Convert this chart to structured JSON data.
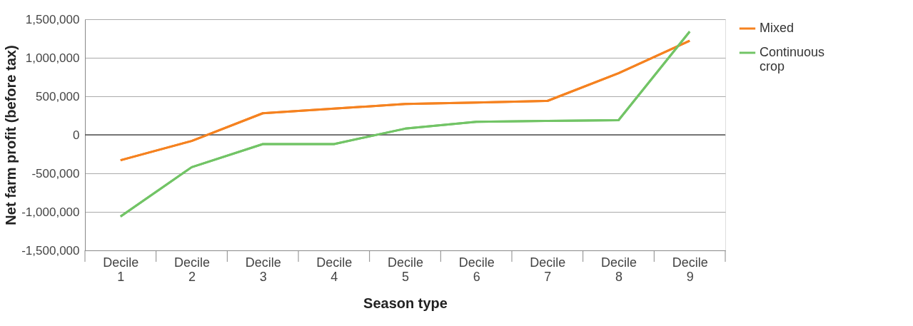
{
  "chart_data": {
    "type": "line",
    "xlabel": "Season type",
    "ylabel": "Net farm profit (before tax)",
    "categories": [
      "Decile 1",
      "Decile 2",
      "Decile 3",
      "Decile 4",
      "Decile 5",
      "Decile 6",
      "Decile 7",
      "Decile 8",
      "Decile 9"
    ],
    "series": [
      {
        "name": "Mixed",
        "color": "#f58220",
        "values": [
          -330000,
          -80000,
          280000,
          340000,
          400000,
          420000,
          440000,
          800000,
          1220000
        ]
      },
      {
        "name": "Continuous crop",
        "color": "#72c466",
        "values": [
          -1060000,
          -420000,
          -120000,
          -120000,
          80000,
          170000,
          180000,
          190000,
          1340000
        ]
      }
    ],
    "ylim": [
      -1500000,
      1500000
    ],
    "yticks": [
      {
        "value": -1500000,
        "label": "-1,500,000"
      },
      {
        "value": -1000000,
        "label": "-1,000,000"
      },
      {
        "value": -500000,
        "label": "-500,000"
      },
      0,
      {
        "value": 500000,
        "label": "500,000"
      },
      {
        "value": 1000000,
        "label": "1,000,000"
      },
      {
        "value": 1500000,
        "label": "1,500,000"
      }
    ],
    "grid": "y",
    "legend": "top right",
    "marker": "none",
    "line_style": "solid",
    "ref_lines": [
      {
        "axis": "y",
        "value": 0,
        "color": "#555555"
      }
    ]
  }
}
